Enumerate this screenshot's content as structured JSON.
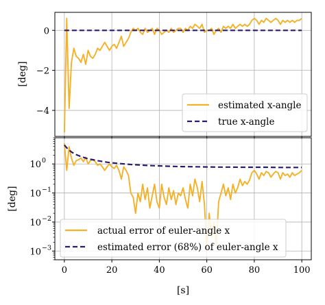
{
  "chart_data": [
    {
      "type": "line",
      "ylabel": "[deg]",
      "xlim": [
        -4,
        104
      ],
      "ylim": [
        -5.3,
        0.9
      ],
      "yscale": "linear",
      "grid": true,
      "legend_placement": "lower right",
      "xticks": [
        0,
        20,
        40,
        60,
        80,
        100
      ],
      "yticks": [
        0,
        -2,
        -4
      ],
      "ytick_labels": [
        "0",
        "−2",
        "−4"
      ],
      "series": [
        {
          "name": "estimated x-angle",
          "color": "#f5b025",
          "style": "solid",
          "x": [
            0,
            1,
            2,
            3,
            4,
            5,
            6,
            7,
            8,
            9,
            10,
            11,
            12,
            13,
            14,
            15,
            16,
            17,
            18,
            19,
            20,
            21,
            22,
            23,
            24,
            25,
            26,
            27,
            28,
            29,
            30,
            31,
            32,
            33,
            34,
            35,
            36,
            37,
            38,
            39,
            40,
            41,
            42,
            43,
            44,
            45,
            46,
            47,
            48,
            49,
            50,
            51,
            52,
            53,
            54,
            55,
            56,
            57,
            58,
            59,
            60,
            61,
            62,
            63,
            64,
            65,
            66,
            67,
            68,
            69,
            70,
            71,
            72,
            73,
            74,
            75,
            76,
            77,
            78,
            79,
            80,
            81,
            82,
            83,
            84,
            85,
            86,
            87,
            88,
            89,
            90,
            91,
            92,
            93,
            94,
            95,
            96,
            97,
            98,
            99,
            100
          ],
          "y": [
            -5.1,
            0.6,
            -3.9,
            -1.6,
            -0.9,
            -1.3,
            -1.4,
            -1.6,
            -1.2,
            -1.7,
            -1.0,
            -1.3,
            -1.4,
            -1.2,
            -0.9,
            -1.0,
            -0.8,
            -0.6,
            -0.8,
            -1.0,
            -0.8,
            -0.7,
            -0.9,
            -0.6,
            -0.3,
            -0.8,
            -0.6,
            -0.4,
            -0.1,
            0.1,
            0.0,
            0.1,
            -0.1,
            -0.2,
            0.1,
            -0.1,
            0.0,
            0.1,
            -0.2,
            0.1,
            0.0,
            -0.2,
            -0.1,
            0.0,
            -0.1,
            0.1,
            -0.1,
            0.0,
            0.1,
            0.1,
            -0.1,
            0.1,
            0.0,
            0.2,
            0.1,
            0.3,
            0.2,
            0.1,
            0.3,
            -0.1,
            0.0,
            0.0,
            0.1,
            -0.2,
            0.0,
            0.1,
            -0.1,
            0.2,
            0.1,
            0.2,
            0.1,
            0.3,
            0.1,
            0.2,
            0.3,
            0.2,
            0.3,
            0.2,
            0.3,
            0.5,
            0.6,
            0.5,
            0.3,
            0.5,
            0.4,
            0.6,
            0.5,
            0.4,
            0.5,
            0.6,
            0.5,
            0.3,
            0.5,
            0.4,
            0.5,
            0.4,
            0.5,
            0.4,
            0.5,
            0.5,
            0.6
          ]
        },
        {
          "name": "true x-angle",
          "color": "#2a1a6e",
          "style": "dashed",
          "x": [
            0,
            100
          ],
          "y": [
            0,
            0
          ]
        }
      ]
    },
    {
      "type": "line",
      "xlabel": "[s]",
      "ylabel": "[deg]",
      "xlim": [
        -4,
        104
      ],
      "ylim": [
        0.0005,
        8
      ],
      "yscale": "log",
      "grid": true,
      "legend_placement": "lower left",
      "xticks": [
        0,
        20,
        40,
        60,
        80,
        100
      ],
      "yticks": [
        1,
        0.1,
        0.01,
        0.001
      ],
      "ytick_labels": [
        "10",
        "10",
        "10",
        "10"
      ],
      "ytick_exponents": [
        "0",
        "−1",
        "−2",
        "−3"
      ],
      "series": [
        {
          "name": "actual error of euler-angle x",
          "color": "#f5b025",
          "style": "solid",
          "x": [
            0,
            1,
            2,
            3,
            4,
            5,
            6,
            7,
            8,
            9,
            10,
            11,
            12,
            13,
            14,
            15,
            16,
            17,
            18,
            19,
            20,
            21,
            22,
            23,
            24,
            25,
            26,
            27,
            28,
            29,
            30,
            31,
            32,
            33,
            34,
            35,
            36,
            37,
            38,
            39,
            40,
            41,
            42,
            43,
            44,
            45,
            46,
            47,
            48,
            49,
            50,
            51,
            52,
            53,
            54,
            55,
            56,
            57,
            58,
            59,
            60,
            61,
            62,
            63,
            64,
            65,
            66,
            67,
            68,
            69,
            70,
            71,
            72,
            73,
            74,
            75,
            76,
            77,
            78,
            79,
            80,
            81,
            82,
            83,
            84,
            85,
            86,
            87,
            88,
            89,
            90,
            91,
            92,
            93,
            94,
            95,
            96,
            97,
            98,
            99,
            100
          ],
          "y": [
            5.1,
            0.6,
            3.9,
            1.6,
            0.9,
            1.3,
            1.4,
            1.6,
            1.2,
            1.7,
            1.0,
            1.3,
            1.4,
            1.2,
            0.9,
            1.0,
            0.8,
            0.6,
            0.8,
            1.0,
            0.8,
            0.7,
            0.9,
            0.6,
            0.3,
            0.8,
            0.6,
            0.4,
            0.1,
            0.07,
            0.02,
            0.1,
            0.05,
            0.2,
            0.06,
            0.15,
            0.03,
            0.08,
            0.2,
            0.05,
            0.03,
            0.2,
            0.07,
            0.04,
            0.15,
            0.06,
            0.12,
            0.04,
            0.1,
            0.08,
            0.15,
            0.06,
            0.03,
            0.2,
            0.08,
            0.3,
            0.15,
            0.05,
            0.25,
            0.04,
            0.001,
            0.02,
            0.003,
            0.01,
            0.0015,
            0.05,
            0.1,
            0.2,
            0.08,
            0.15,
            0.06,
            0.2,
            0.1,
            0.15,
            0.3,
            0.18,
            0.25,
            0.2,
            0.28,
            0.5,
            0.6,
            0.45,
            0.3,
            0.5,
            0.4,
            0.55,
            0.5,
            0.35,
            0.45,
            0.55,
            0.5,
            0.3,
            0.5,
            0.4,
            0.45,
            0.35,
            0.5,
            0.4,
            0.45,
            0.5,
            0.6
          ]
        },
        {
          "name": "estimated error (68%) of euler-angle x",
          "color": "#2a1a6e",
          "style": "dashed",
          "x": [
            0,
            1,
            2,
            3,
            4,
            5,
            6,
            7,
            8,
            9,
            10,
            12,
            14,
            16,
            18,
            20,
            22,
            24,
            26,
            28,
            30,
            32,
            35,
            38,
            40,
            45,
            50,
            55,
            60,
            65,
            70,
            75,
            80,
            85,
            90,
            95,
            100
          ],
          "y": [
            4.5,
            3.6,
            3.0,
            2.6,
            2.3,
            2.1,
            1.95,
            1.8,
            1.7,
            1.6,
            1.5,
            1.4,
            1.3,
            1.22,
            1.15,
            1.1,
            1.06,
            1.02,
            0.99,
            0.96,
            0.94,
            0.92,
            0.89,
            0.87,
            0.86,
            0.83,
            0.81,
            0.8,
            0.79,
            0.78,
            0.78,
            0.77,
            0.77,
            0.77,
            0.76,
            0.76,
            0.76
          ]
        }
      ]
    }
  ]
}
